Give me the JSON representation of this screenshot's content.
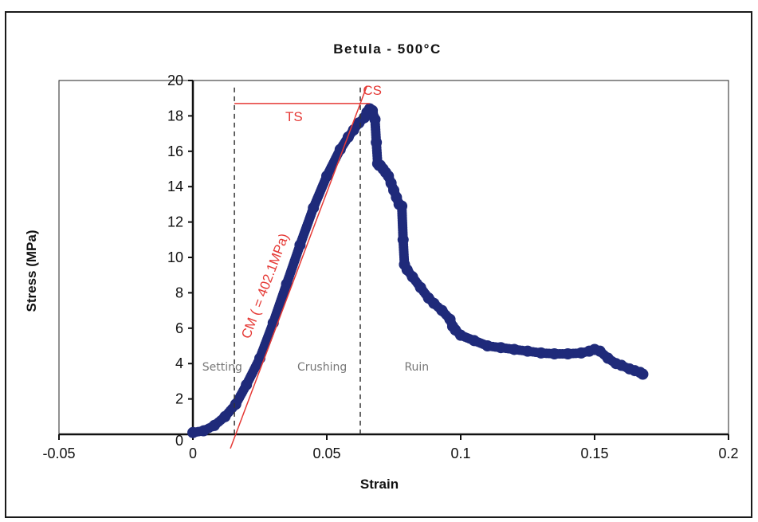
{
  "chart_data": {
    "type": "scatter",
    "title": "Betula - 500°C",
    "xlabel": "Strain",
    "ylabel": "Stress (MPa)",
    "xlim": [
      -0.05,
      0.2
    ],
    "ylim": [
      0,
      20
    ],
    "xticks": [
      "-0.05",
      "0",
      "0.05",
      "0.1",
      "0.15",
      "0.2"
    ],
    "yticks": [
      "0",
      "2",
      "4",
      "6",
      "8",
      "10",
      "12",
      "14",
      "16",
      "18",
      "20"
    ],
    "grid": false,
    "legend": "none",
    "series": [
      {
        "color": "#1f2a7a",
        "x": [
          0,
          0.004,
          0.008,
          0.012,
          0.016,
          0.02,
          0.025,
          0.03,
          0.035,
          0.04,
          0.045,
          0.05,
          0.055,
          0.058,
          0.06,
          0.062,
          0.064,
          0.065,
          0.066,
          0.067,
          0.068,
          0.0685,
          0.069,
          0.0695,
          0.07,
          0.071,
          0.072,
          0.073,
          0.074,
          0.075,
          0.076,
          0.077,
          0.078,
          0.0785,
          0.079,
          0.08,
          0.082,
          0.085,
          0.088,
          0.09,
          0.093,
          0.096,
          0.097,
          0.098,
          0.1,
          0.105,
          0.11,
          0.115,
          0.12,
          0.125,
          0.13,
          0.135,
          0.14,
          0.145,
          0.148,
          0.15,
          0.152,
          0.155,
          0.158,
          0.16,
          0.163,
          0.165,
          0.167,
          0.168
        ],
        "y": [
          0.1,
          0.2,
          0.5,
          1.0,
          1.7,
          2.8,
          4.3,
          6.3,
          8.5,
          10.7,
          12.8,
          14.6,
          16.1,
          16.8,
          17.2,
          17.6,
          17.9,
          18.2,
          18.4,
          18.3,
          17.8,
          16.5,
          15.3,
          15.2,
          15.2,
          15.0,
          14.8,
          14.6,
          14.2,
          13.8,
          13.4,
          13.0,
          12.9,
          11.0,
          9.6,
          9.3,
          8.9,
          8.3,
          7.7,
          7.4,
          7.0,
          6.5,
          6.1,
          5.9,
          5.6,
          5.3,
          5.0,
          4.9,
          4.8,
          4.7,
          4.6,
          4.55,
          4.55,
          4.6,
          4.7,
          4.8,
          4.7,
          4.3,
          4.0,
          3.9,
          3.7,
          3.6,
          3.5,
          3.4
        ]
      }
    ],
    "annotations": {
      "dividers": [
        0.0155,
        0.0625
      ],
      "phases": [
        {
          "label": "Setting",
          "x": 0.0035,
          "y": 3.6
        },
        {
          "label": "Crushing",
          "x": 0.039,
          "y": 3.6
        },
        {
          "label": "Ruin",
          "x": 0.079,
          "y": 3.6
        }
      ],
      "ts": {
        "label": "TS",
        "x_start": 0.0155,
        "x_end": 0.066,
        "y": 18.7
      },
      "cs_label": "CS",
      "cm_label": "CM ( = 402.1MPa)",
      "cm_line": {
        "x1": 0.014,
        "y1": -0.8,
        "x2": 0.065,
        "y2": 19.7
      },
      "color": "#e53935"
    }
  }
}
